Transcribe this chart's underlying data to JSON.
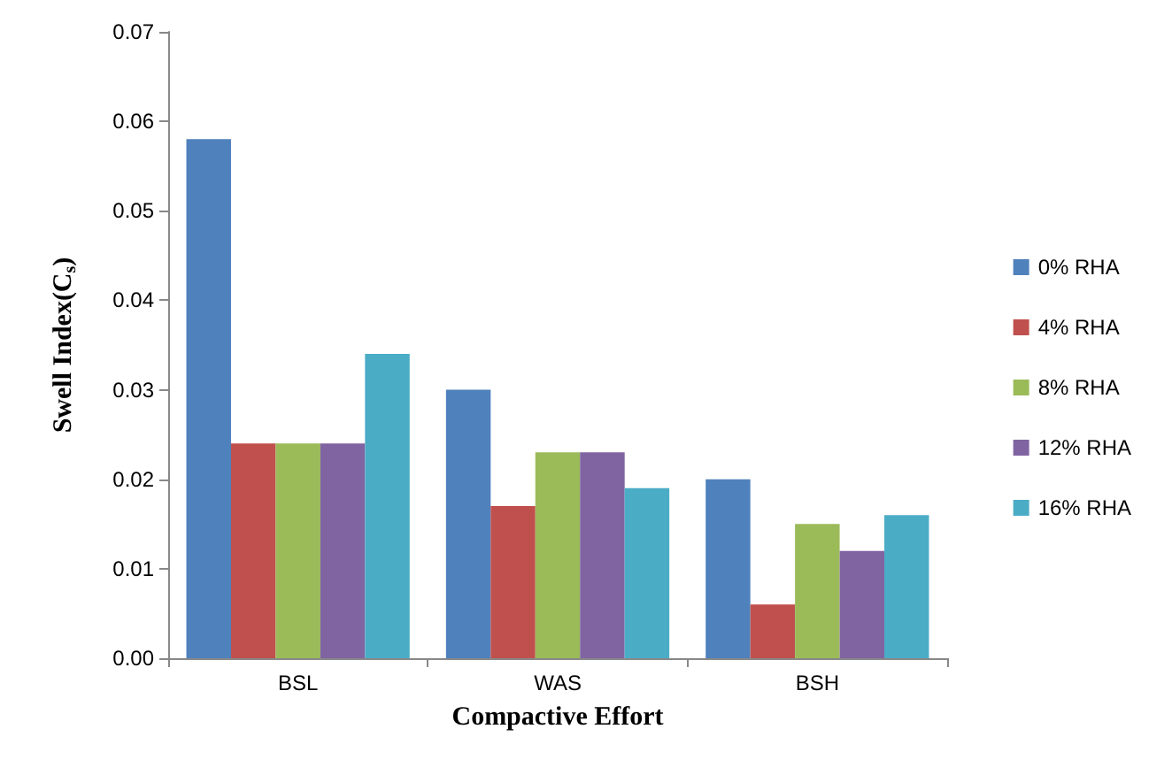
{
  "chart_data": {
    "type": "bar",
    "xlabel": "Compactive Effort",
    "ylabel": "Swell Index(C$_{s}$)",
    "categories": [
      "BSL",
      "WAS",
      "BSH"
    ],
    "series": [
      {
        "name": "0% RHA",
        "color": "#4f81bd",
        "values": [
          0.058,
          0.03,
          0.02
        ]
      },
      {
        "name": "4% RHA",
        "color": "#c0504d",
        "values": [
          0.024,
          0.017,
          0.006
        ]
      },
      {
        "name": "8% RHA",
        "color": "#9bbb59",
        "values": [
          0.024,
          0.023,
          0.015
        ]
      },
      {
        "name": "12% RHA",
        "color": "#8064a2",
        "values": [
          0.024,
          0.023,
          0.012
        ]
      },
      {
        "name": "16% RHA",
        "color": "#4bacc6",
        "values": [
          0.034,
          0.019,
          0.016
        ]
      }
    ],
    "ylim": [
      0,
      0.07
    ],
    "yticks": [
      {
        "value": 0,
        "label": "0.00"
      },
      {
        "value": 0.01,
        "label": "0.01"
      },
      {
        "value": 0.02,
        "label": "0.02"
      },
      {
        "value": 0.03,
        "label": "0.03"
      },
      {
        "value": 0.04,
        "label": "0.04"
      },
      {
        "value": 0.05,
        "label": "0.05"
      },
      {
        "value": 0.06,
        "label": "0.06"
      },
      {
        "value": 0.07,
        "label": "0.07"
      }
    ],
    "grid": false,
    "legend": "right"
  }
}
